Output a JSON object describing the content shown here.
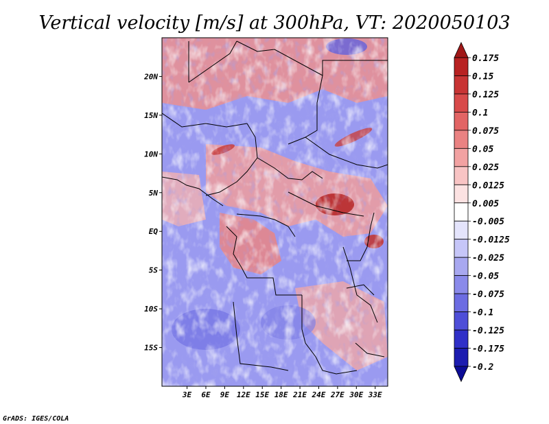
{
  "chart_data": {
    "type": "heatmap",
    "title": "Vertical velocity [m/s] at 300hPa, VT: 2020050103",
    "xlabel": "",
    "ylabel": "",
    "xlim": [
      -1,
      35
    ],
    "ylim": [
      -20,
      25
    ],
    "x_ticks": [
      {
        "value": 3,
        "label": "3E"
      },
      {
        "value": 6,
        "label": "6E"
      },
      {
        "value": 9,
        "label": "9E"
      },
      {
        "value": 12,
        "label": "12E"
      },
      {
        "value": 15,
        "label": "15E"
      },
      {
        "value": 18,
        "label": "18E"
      },
      {
        "value": 21,
        "label": "21E"
      },
      {
        "value": 24,
        "label": "24E"
      },
      {
        "value": 27,
        "label": "27E"
      },
      {
        "value": 30,
        "label": "30E"
      },
      {
        "value": 33,
        "label": "33E"
      }
    ],
    "y_ticks": [
      {
        "value": 20,
        "label": "20N"
      },
      {
        "value": 15,
        "label": "15N"
      },
      {
        "value": 10,
        "label": "10N"
      },
      {
        "value": 5,
        "label": "5N"
      },
      {
        "value": 0,
        "label": "EQ"
      },
      {
        "value": -5,
        "label": "5S"
      },
      {
        "value": -10,
        "label": "10S"
      },
      {
        "value": -15,
        "label": "15S"
      }
    ],
    "colorbar": {
      "labels": [
        "0.175",
        "0.15",
        "0.125",
        "0.1",
        "0.075",
        "0.05",
        "0.025",
        "0.0125",
        "0.005",
        "-0.005",
        "-0.0125",
        "-0.025",
        "-0.05",
        "-0.075",
        "-0.1",
        "-0.125",
        "-0.175",
        "-0.2"
      ],
      "colors": [
        "#a01818",
        "#b82222",
        "#c83434",
        "#d84a4a",
        "#e26464",
        "#ea8282",
        "#f2a2a2",
        "#f8c4c4",
        "#fce2e2",
        "#ffffff",
        "#e4e4fc",
        "#c6c6f8",
        "#a8a8f0",
        "#8a8aea",
        "#6c6ce2",
        "#4e4ed8",
        "#3030c8",
        "#1c1cb0",
        "#0c0c96"
      ]
    }
  },
  "footer": {
    "credit": "GrADS: IGES/COLA"
  }
}
